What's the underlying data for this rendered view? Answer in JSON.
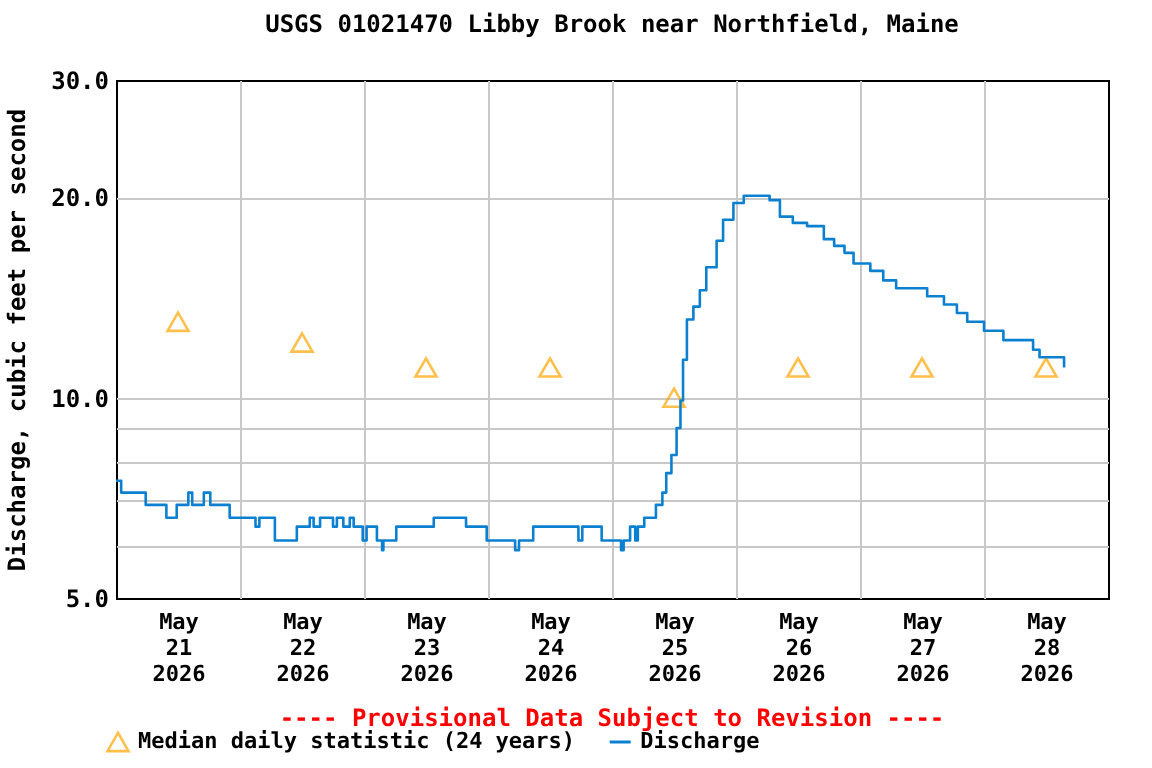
{
  "chart_data": {
    "type": "step",
    "title": "USGS 01021470 Libby Brook near Northfield, Maine",
    "ylabel": "Discharge, cubic feet per second",
    "annotations": [
      "---- Provisional Data Subject to Revision ----"
    ],
    "log": "y",
    "grid": true,
    "legend": "bottom left",
    "xlim": [
      "2026-05-21T00:00",
      "2026-05-29T00:00"
    ],
    "xticks": [
      {
        "value": "2026-05-21T00:00",
        "label": null
      },
      {
        "value": "2026-05-21T12:00",
        "label": "May\n21\n2026"
      },
      {
        "value": "2026-05-22T00:00",
        "label": null
      },
      {
        "value": "2026-05-22T12:00",
        "label": "May\n22\n2026"
      },
      {
        "value": "2026-05-23T00:00",
        "label": null
      },
      {
        "value": "2026-05-23T12:00",
        "label": "May\n23\n2026"
      },
      {
        "value": "2026-05-24T00:00",
        "label": null
      },
      {
        "value": "2026-05-24T12:00",
        "label": "May\n24\n2026"
      },
      {
        "value": "2026-05-25T00:00",
        "label": null
      },
      {
        "value": "2026-05-25T12:00",
        "label": "May\n25\n2026"
      },
      {
        "value": "2026-05-26T00:00",
        "label": null
      },
      {
        "value": "2026-05-26T12:00",
        "label": "May\n26\n2026"
      },
      {
        "value": "2026-05-27T00:00",
        "label": null
      },
      {
        "value": "2026-05-27T12:00",
        "label": "May\n27\n2026"
      },
      {
        "value": "2026-05-28T00:00",
        "label": null
      },
      {
        "value": "2026-05-28T12:00",
        "label": "May\n28\n2026"
      },
      {
        "value": "2026-05-29T00:00",
        "label": null
      }
    ],
    "ylim": [
      5,
      30
    ],
    "yticks": [
      {
        "value": 5,
        "label": "5.0"
      },
      {
        "value": 6,
        "label": null
      },
      {
        "value": 7,
        "label": null
      },
      {
        "value": 8,
        "label": null
      },
      {
        "value": 9,
        "label": null
      },
      {
        "value": 10,
        "label": "10.0"
      },
      {
        "value": 20,
        "label": "20.0"
      },
      {
        "value": 30,
        "label": "30.0"
      }
    ],
    "series": [
      {
        "name": "Median daily statistic (24 years)",
        "type": "scatter",
        "marker": "triangle",
        "color": "#ffa500",
        "x": [
          "2026-05-21T12:00",
          "2026-05-22T12:00",
          "2026-05-23T12:00",
          "2026-05-24T12:00",
          "2026-05-25T12:00",
          "2026-05-26T12:00",
          "2026-05-27T12:00",
          "2026-05-28T12:00"
        ],
        "values": [
          13.0,
          12.1,
          11.1,
          11.1,
          10.0,
          11.1,
          11.1,
          11.1
        ]
      },
      {
        "name": "Discharge",
        "color": "#0b80d0",
        "x": [
          "2026-05-21T00:00",
          "2026-05-21T01:00",
          "2026-05-21T05:45",
          "2026-05-21T09:45",
          "2026-05-21T11:45",
          "2026-05-21T14:00",
          "2026-05-21T14:45",
          "2026-05-21T17:00",
          "2026-05-21T18:15",
          "2026-05-21T22:00",
          "2026-05-22T03:00",
          "2026-05-22T03:45",
          "2026-05-22T06:45",
          "2026-05-22T11:00",
          "2026-05-22T13:30",
          "2026-05-22T14:15",
          "2026-05-22T15:30",
          "2026-05-22T18:00",
          "2026-05-22T18:45",
          "2026-05-22T20:00",
          "2026-05-22T21:15",
          "2026-05-22T22:00",
          "2026-05-22T23:45",
          "2026-05-23T00:30",
          "2026-05-23T02:30",
          "2026-05-23T03:30",
          "2026-05-23T03:45",
          "2026-05-23T06:15",
          "2026-05-23T13:30",
          "2026-05-23T19:45",
          "2026-05-23T23:45",
          "2026-05-24T05:15",
          "2026-05-24T06:00",
          "2026-05-24T08:45",
          "2026-05-24T17:30",
          "2026-05-24T18:15",
          "2026-05-24T22:00",
          "2026-05-25T01:45",
          "2026-05-25T02:15",
          "2026-05-25T03:30",
          "2026-05-25T04:30",
          "2026-05-25T05:00",
          "2026-05-25T06:15",
          "2026-05-25T08:30",
          "2026-05-25T09:45",
          "2026-05-25T10:30",
          "2026-05-25T11:30",
          "2026-05-25T12:30",
          "2026-05-25T13:15",
          "2026-05-25T13:45",
          "2026-05-25T14:30",
          "2026-05-25T15:45",
          "2026-05-25T17:00",
          "2026-05-25T18:15",
          "2026-05-25T20:15",
          "2026-05-25T21:30",
          "2026-05-25T23:30",
          "2026-05-26T01:30",
          "2026-05-26T04:00",
          "2026-05-26T06:30",
          "2026-05-26T08:30",
          "2026-05-26T11:00",
          "2026-05-26T13:45",
          "2026-05-26T17:00",
          "2026-05-26T19:00",
          "2026-05-26T21:00",
          "2026-05-26T22:45",
          "2026-05-27T02:00",
          "2026-05-27T04:30",
          "2026-05-27T07:00",
          "2026-05-27T13:00",
          "2026-05-27T16:15",
          "2026-05-27T18:45",
          "2026-05-27T20:45",
          "2026-05-28T00:00",
          "2026-05-28T03:45",
          "2026-05-28T09:30",
          "2026-05-28T10:45",
          "2026-05-28T15:30"
        ],
        "values": [
          7.5,
          7.2,
          6.9,
          6.6,
          6.9,
          7.2,
          6.9,
          7.2,
          6.9,
          6.6,
          6.4,
          6.6,
          6.1,
          6.4,
          6.6,
          6.4,
          6.6,
          6.4,
          6.6,
          6.4,
          6.6,
          6.4,
          6.1,
          6.4,
          6.1,
          5.9,
          6.1,
          6.4,
          6.6,
          6.4,
          6.1,
          5.9,
          6.1,
          6.4,
          6.1,
          6.4,
          6.1,
          5.9,
          6.1,
          6.4,
          6.1,
          6.4,
          6.6,
          6.9,
          7.2,
          7.7,
          8.2,
          9.0,
          9.9,
          11.4,
          13.1,
          13.7,
          14.5,
          15.7,
          17.2,
          18.5,
          19.6,
          20.1,
          20.1,
          19.8,
          18.7,
          18.3,
          18.1,
          17.3,
          16.9,
          16.5,
          15.9,
          15.5,
          15.0,
          14.6,
          14.2,
          13.8,
          13.4,
          13.0,
          12.6,
          12.2,
          11.8,
          11.5,
          11.1
        ]
      }
    ]
  }
}
